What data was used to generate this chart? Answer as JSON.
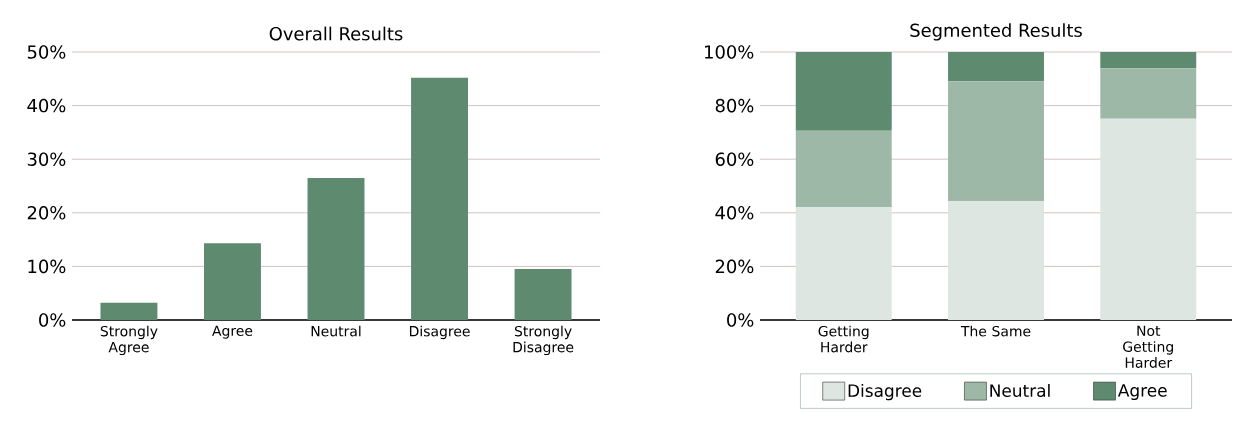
{
  "chart_data": [
    {
      "type": "bar",
      "title": "Overall Results",
      "categories": [
        "Strongly Agree",
        "Agree",
        "Neutral",
        "Disagree",
        "Strongly Disagree"
      ],
      "values": [
        3.2,
        14.3,
        26.5,
        45.2,
        9.5
      ],
      "color": "#5e8a70",
      "ylim": [
        0,
        50
      ],
      "yticks": [
        {
          "value": 0,
          "label": "0%"
        },
        {
          "value": 10,
          "label": "10%"
        },
        {
          "value": 20,
          "label": "20%"
        },
        {
          "value": 30,
          "label": "30%"
        },
        {
          "value": 40,
          "label": "40%"
        },
        {
          "value": 50,
          "label": "50%"
        }
      ],
      "grid": "y"
    },
    {
      "type": "bar",
      "title": "Segmented Results",
      "categories": [
        "Getting Harder",
        "The Same",
        "Not Getting Harder"
      ],
      "stacked": true,
      "series": [
        {
          "name": "Disagree",
          "color": "#dde6e0",
          "values": [
            42.1,
            44.3,
            75.1
          ]
        },
        {
          "name": "Neutral",
          "color": "#9eb8a8",
          "values": [
            28.5,
            44.8,
            18.8
          ]
        },
        {
          "name": "Agree",
          "color": "#5e8a70",
          "values": [
            29.4,
            10.9,
            6.1
          ]
        }
      ],
      "ylim": [
        0,
        100
      ],
      "yticks": [
        {
          "value": 0,
          "label": "0%"
        },
        {
          "value": 20,
          "label": "20%"
        },
        {
          "value": 40,
          "label": "40%"
        },
        {
          "value": 60,
          "label": "60%"
        },
        {
          "value": 80,
          "label": "80%"
        },
        {
          "value": 100,
          "label": "100%"
        }
      ],
      "grid": "y",
      "legend": "bottom"
    }
  ]
}
